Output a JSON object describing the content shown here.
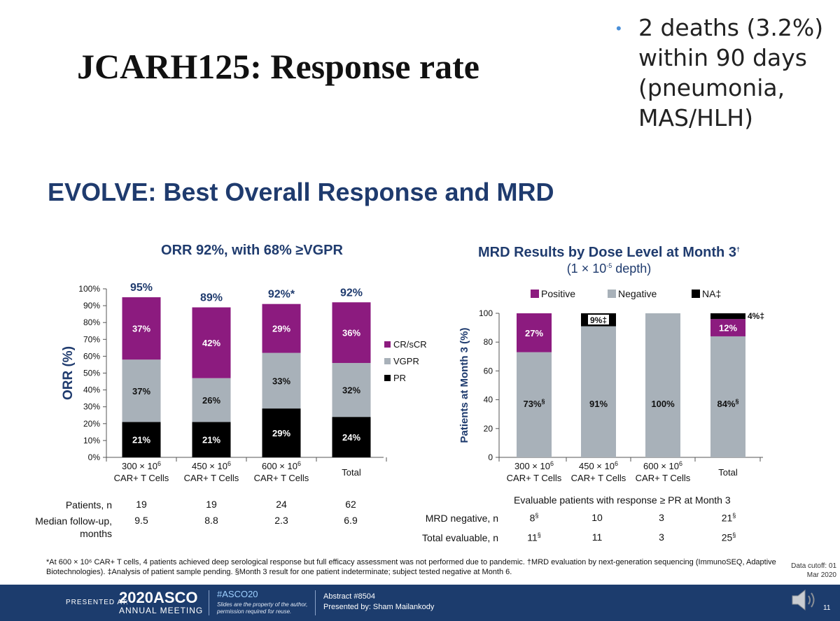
{
  "title": "JCARH125: Response rate",
  "side_note": "2 deaths (3.2%) within 90 days (pneumonia, MAS/HLH)",
  "subtitle": "EVOLVE: Best Overall Response and MRD",
  "chart_data": [
    {
      "type": "bar",
      "stacked": true,
      "title": "ORR 92%, with 68% ≥VGPR",
      "ylabel": "ORR (%)",
      "ylim": [
        0,
        100
      ],
      "yticks": [
        "0%",
        "10%",
        "20%",
        "30%",
        "40%",
        "50%",
        "60%",
        "70%",
        "80%",
        "90%",
        "100%"
      ],
      "categories": [
        {
          "line1": "300 × 10",
          "sup": "6",
          "line2": "CAR+ T Cells"
        },
        {
          "line1": "450 × 10",
          "sup": "6",
          "line2": "CAR+ T Cells"
        },
        {
          "line1": "600 × 10",
          "sup": "6",
          "line2": "CAR+ T Cells"
        },
        {
          "line1": "Total",
          "sup": "",
          "line2": ""
        }
      ],
      "series": [
        {
          "name": "PR",
          "color": "#000000",
          "values": [
            21,
            21,
            29,
            24
          ],
          "labels": [
            "21%",
            "21%",
            "29%",
            "24%"
          ]
        },
        {
          "name": "VGPR",
          "color": "#a8b1b9",
          "values": [
            37,
            26,
            33,
            32
          ],
          "labels": [
            "37%",
            "26%",
            "33%",
            "32%"
          ]
        },
        {
          "name": "CR/sCR",
          "color": "#8c1b7f",
          "values": [
            37,
            42,
            29,
            36
          ],
          "labels": [
            "37%",
            "42%",
            "29%",
            "36%"
          ]
        }
      ],
      "totals": [
        "95%",
        "89%",
        "92%*",
        "92%"
      ],
      "legend": [
        "CR/sCR",
        "VGPR",
        "PR"
      ],
      "legend_position": "right",
      "grid": false
    },
    {
      "type": "bar",
      "stacked": true,
      "title": "MRD Results by Dose Level at Month 3",
      "title_sup": "†",
      "subtitle": "(1 × 10",
      "subtitle_sup": "-5",
      "subtitle_end": " depth)",
      "ylabel": "Patients at Month 3 (%)",
      "ylim": [
        0,
        100
      ],
      "yticks": [
        "0",
        "20",
        "40",
        "60",
        "80",
        "100"
      ],
      "categories": [
        {
          "line1": "300 × 10",
          "sup": "6",
          "line2": "CAR+ T Cells"
        },
        {
          "line1": "450 × 10",
          "sup": "6",
          "line2": "CAR+ T Cells"
        },
        {
          "line1": "600 × 10",
          "sup": "6",
          "line2": "CAR+ T Cells"
        },
        {
          "line1": "Total",
          "sup": "",
          "line2": ""
        }
      ],
      "series": [
        {
          "name": "Negative",
          "color": "#a8b1b9",
          "values": [
            73,
            91,
            100,
            84
          ],
          "labels": [
            "73%",
            "91%",
            "100%",
            "84%"
          ],
          "label_sups": [
            "§",
            "",
            "",
            "§"
          ]
        },
        {
          "name": "Positive",
          "color": "#8c1b7f",
          "values": [
            27,
            0,
            0,
            12
          ],
          "labels": [
            "27%",
            "",
            "",
            "12%"
          ]
        },
        {
          "name": "NA‡",
          "color": "#000000",
          "values": [
            0,
            9,
            0,
            4
          ],
          "labels": [
            "",
            "9%‡",
            "",
            "4%‡"
          ]
        }
      ],
      "legend": [
        "Positive",
        "Negative",
        "NA‡"
      ],
      "legend_position": "top",
      "grid": false
    }
  ],
  "left_table": {
    "rows": [
      {
        "label": "Patients, n",
        "values": [
          "19",
          "19",
          "24",
          "62"
        ]
      },
      {
        "label": "Median follow-up, months",
        "values": [
          "9.5",
          "8.8",
          "2.3",
          "6.9"
        ]
      }
    ]
  },
  "right_table": {
    "header": "Evaluable patients with response ≥ PR at Month 3",
    "rows": [
      {
        "label": "MRD negative, n",
        "values": [
          "8",
          "10",
          "3",
          "21"
        ],
        "sups": [
          "§",
          "",
          "",
          "§"
        ]
      },
      {
        "label": "Total evaluable, n",
        "values": [
          "11",
          "11",
          "3",
          "25"
        ],
        "sups": [
          "§",
          "",
          "",
          "§"
        ]
      }
    ]
  },
  "footnote": "*At 600 × 10⁶ CAR+ T cells, 4 patients achieved deep serological response but full efficacy assessment was not performed due to pandemic. †MRD evaluation by next-generation sequencing (ImmunoSEQ, Adaptive Biotechnologies). ‡Analysis of patient sample pending. §Month 3 result for one patient indeterminate; subject tested negative at Month 6.",
  "data_cutoff": "Data cutoff: 01 Mar 2020",
  "footer": {
    "presented_at": "PRESENTED AT:",
    "asco": "2020ASCO",
    "asco_sub": "ANNUAL MEETING",
    "hashtag": "#ASCO20",
    "permission": "Slides are the property of the author, permission required for reuse.",
    "abstract": "Abstract #8504",
    "presenter": "Presented by: Sham Mailankody",
    "page": "11"
  }
}
